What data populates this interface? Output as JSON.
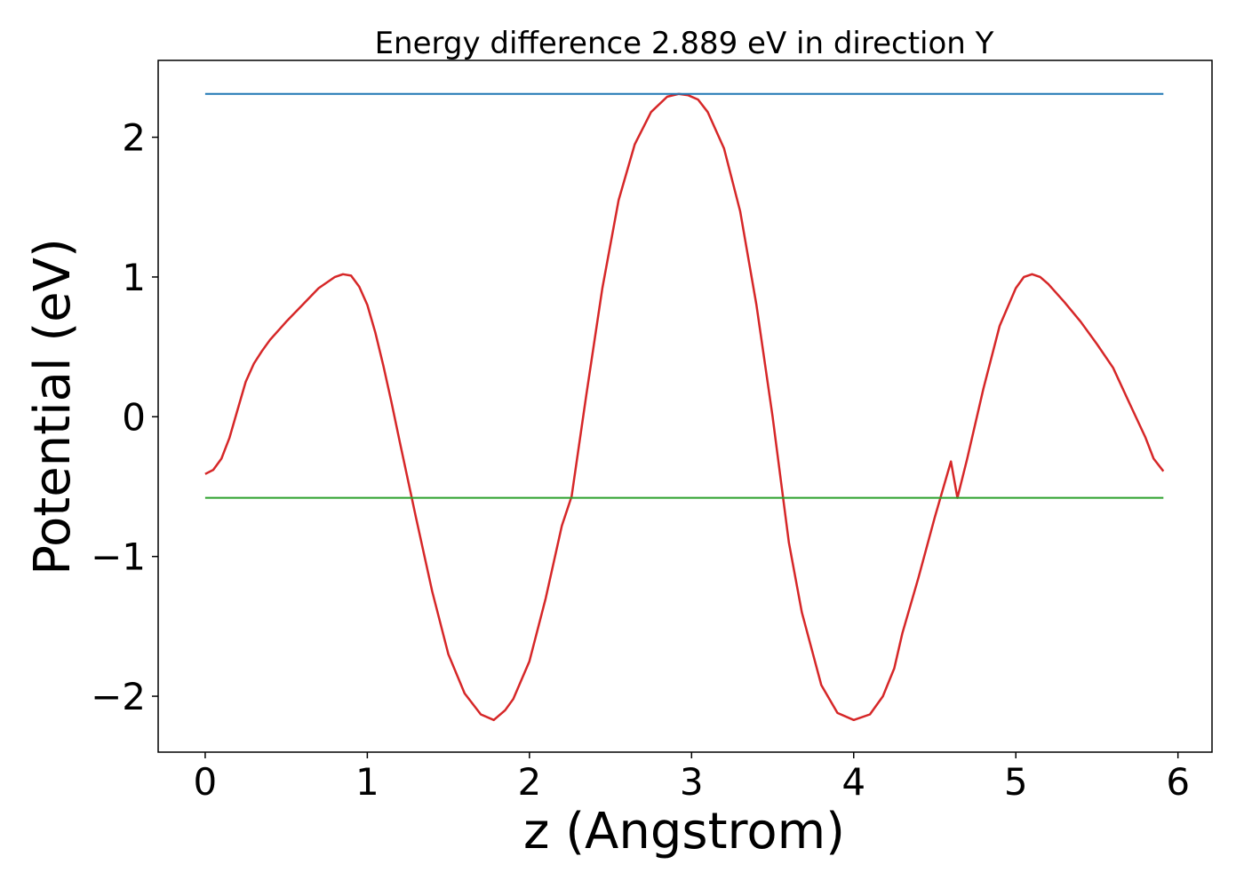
{
  "chart_data": {
    "type": "line",
    "title": "Energy difference 2.889 eV in direction Y",
    "xlabel": "z (Angstrom)",
    "ylabel": "Potential (eV)",
    "xlim": [
      -0.29,
      6.21
    ],
    "ylim": [
      -2.4,
      2.55
    ],
    "xticks": [
      0,
      1,
      2,
      3,
      4,
      5,
      6
    ],
    "xtick_labels": [
      "0",
      "1",
      "2",
      "3",
      "4",
      "5",
      "6"
    ],
    "yticks": [
      -2,
      -1,
      0,
      1,
      2
    ],
    "ytick_labels": [
      "−2",
      "−1",
      "0",
      "1",
      "2"
    ],
    "grid": false,
    "series": [
      {
        "color": "#d62728",
        "x": [
          0,
          0.05,
          0.1,
          0.15,
          0.2,
          0.25,
          0.3,
          0.35,
          0.4,
          0.5,
          0.6,
          0.7,
          0.8,
          0.85,
          0.9,
          0.95,
          1.0,
          1.05,
          1.1,
          1.15,
          1.2,
          1.3,
          1.4,
          1.5,
          1.6,
          1.7,
          1.78,
          1.85,
          1.9,
          2.0,
          2.1,
          2.2,
          2.26,
          2.35,
          2.45,
          2.55,
          2.65,
          2.75,
          2.85,
          2.92,
          2.98,
          3.04,
          3.1,
          3.2,
          3.3,
          3.4,
          3.5,
          3.6,
          3.68,
          3.8,
          3.9,
          4.0,
          4.1,
          4.18,
          4.25,
          4.3,
          4.4,
          4.5,
          4.6,
          4.64,
          4.7,
          4.8,
          4.9,
          5.0,
          5.05,
          5.1,
          5.15,
          5.2,
          5.3,
          5.4,
          5.5,
          5.6,
          5.7,
          5.8,
          5.85,
          5.91
        ],
        "y": [
          -0.41,
          -0.38,
          -0.3,
          -0.15,
          0.05,
          0.25,
          0.38,
          0.47,
          0.55,
          0.68,
          0.8,
          0.92,
          1.0,
          1.02,
          1.01,
          0.93,
          0.8,
          0.6,
          0.36,
          0.1,
          -0.18,
          -0.72,
          -1.25,
          -1.7,
          -1.98,
          -2.13,
          -2.17,
          -2.1,
          -2.02,
          -1.75,
          -1.3,
          -0.78,
          -0.57,
          0.15,
          0.92,
          1.55,
          1.95,
          2.18,
          2.29,
          2.31,
          2.3,
          2.27,
          2.18,
          1.92,
          1.47,
          0.8,
          0.0,
          -0.9,
          -1.4,
          -1.92,
          -2.12,
          -2.17,
          -2.13,
          -2.0,
          -1.8,
          -1.55,
          -1.15,
          -0.72,
          -0.32,
          -0.58,
          -0.3,
          0.2,
          0.65,
          0.92,
          1.0,
          1.02,
          1.0,
          0.95,
          0.82,
          0.68,
          0.52,
          0.35,
          0.1,
          -0.15,
          -0.3,
          -0.39
        ]
      },
      {
        "color": "#1f77b4",
        "x": [
          0,
          5.91
        ],
        "y": [
          2.31,
          2.31
        ]
      },
      {
        "color": "#2ca02c",
        "x": [
          0,
          5.91
        ],
        "y": [
          -0.58,
          -0.58
        ]
      }
    ]
  }
}
